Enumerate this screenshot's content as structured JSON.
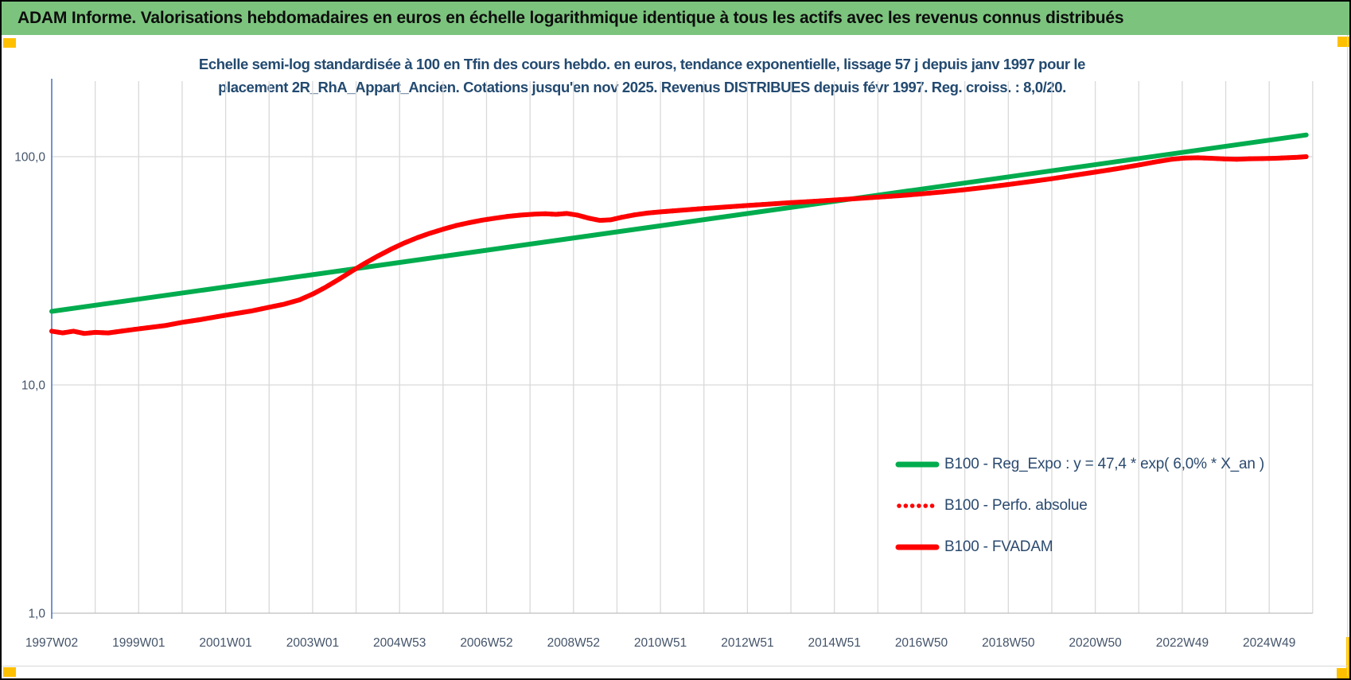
{
  "header": {
    "text": "ADAM Informe. Valorisations hebdomadaires en euros en échelle logarithmique identique à tous les actifs avec les revenus connus distribués",
    "background_color": "#7CC47E"
  },
  "handles_color": "#FFC000",
  "chart_data": {
    "type": "line",
    "title_line1": "Echelle semi-log standardisée à 100 en Tfin des cours hebdo. en euros, tendance exponentielle, lissage 57 j depuis janv 1997 pour le",
    "title_line2": "placement 2R_RhA_Appart_Ancien. Cotations jusqu'en nov 2025. Revenus DISTRIBUES depuis févr 1997. Reg. croiss. : 8,0/20.",
    "y_axis": {
      "scale": "log",
      "tick_labels": [
        "100,0",
        "10,0",
        "1,0"
      ],
      "tick_values": [
        100,
        10,
        1
      ],
      "grid_values": [
        100,
        10
      ]
    },
    "x_axis": {
      "tick_labels": [
        "1997W02",
        "1999W01",
        "2001W01",
        "2003W01",
        "2004W53",
        "2006W52",
        "2008W52",
        "2010W51",
        "2012W51",
        "2014W51",
        "2016W50",
        "2018W50",
        "2020W50",
        "2022W49",
        "2024W49"
      ],
      "years_per_label": 2,
      "minor_grid_step_years": 1,
      "total_extent_years": 29
    },
    "colors": {
      "grid": "#D9D9D9",
      "baseline": "#BFBFBF",
      "y_axis_line": "#4472C4",
      "tick_text": "#44546A",
      "green_series": "#00AC4E",
      "red_series": "#FF0000"
    },
    "series": [
      {
        "name": "B100 - Reg_Expo : y = 47,4 * exp( 6,0% *  X_an )",
        "color": "#00AC4E",
        "style": "solid",
        "points": [
          [
            0,
            21.0
          ],
          [
            28.85,
            124.5
          ]
        ]
      },
      {
        "name": "B100 - Perfo. absolue",
        "color": "#FF0000",
        "style": "dotted",
        "points_ref": "B100 - FVADAM",
        "note_visible": "coincides with B100 - FVADAM curve"
      },
      {
        "name": "B100 - FVADAM",
        "color": "#FF0000",
        "style": "solid",
        "points": [
          [
            0,
            17.2
          ],
          [
            0.25,
            16.9
          ],
          [
            0.5,
            17.2
          ],
          [
            0.75,
            16.8
          ],
          [
            1.0,
            17.0
          ],
          [
            1.3,
            16.9
          ],
          [
            1.6,
            17.2
          ],
          [
            1.9,
            17.5
          ],
          [
            2.2,
            17.8
          ],
          [
            2.6,
            18.2
          ],
          [
            3.0,
            18.8
          ],
          [
            3.4,
            19.3
          ],
          [
            3.8,
            19.9
          ],
          [
            4.2,
            20.5
          ],
          [
            4.6,
            21.1
          ],
          [
            5.0,
            21.9
          ],
          [
            5.35,
            22.6
          ],
          [
            5.7,
            23.6
          ],
          [
            6.0,
            25.0
          ],
          [
            6.3,
            26.8
          ],
          [
            6.6,
            29.0
          ],
          [
            6.9,
            31.5
          ],
          [
            7.2,
            34.1
          ],
          [
            7.5,
            36.7
          ],
          [
            7.8,
            39.3
          ],
          [
            8.1,
            41.8
          ],
          [
            8.4,
            44.1
          ],
          [
            8.7,
            46.2
          ],
          [
            9.0,
            48.1
          ],
          [
            9.3,
            49.9
          ],
          [
            9.6,
            51.4
          ],
          [
            9.9,
            52.7
          ],
          [
            10.2,
            53.8
          ],
          [
            10.5,
            54.8
          ],
          [
            10.8,
            55.5
          ],
          [
            11.1,
            56.0
          ],
          [
            11.35,
            56.2
          ],
          [
            11.6,
            55.9
          ],
          [
            11.85,
            56.4
          ],
          [
            12.1,
            55.4
          ],
          [
            12.35,
            53.8
          ],
          [
            12.6,
            52.6
          ],
          [
            12.85,
            52.9
          ],
          [
            13.1,
            54.2
          ],
          [
            13.4,
            55.6
          ],
          [
            13.7,
            56.6
          ],
          [
            14.0,
            57.3
          ],
          [
            14.5,
            58.3
          ],
          [
            15.0,
            59.3
          ],
          [
            15.5,
            60.2
          ],
          [
            16.0,
            61.1
          ],
          [
            16.5,
            62.0
          ],
          [
            17.0,
            62.9
          ],
          [
            17.5,
            63.7
          ],
          [
            18.0,
            64.6
          ],
          [
            18.5,
            65.5
          ],
          [
            19.0,
            66.5
          ],
          [
            19.5,
            67.5
          ],
          [
            20.0,
            68.7
          ],
          [
            20.5,
            70.1
          ],
          [
            21.0,
            71.7
          ],
          [
            21.5,
            73.5
          ],
          [
            22.0,
            75.5
          ],
          [
            22.5,
            77.7
          ],
          [
            23.0,
            80.1
          ],
          [
            23.5,
            82.8
          ],
          [
            24.0,
            85.6
          ],
          [
            24.5,
            88.6
          ],
          [
            25.0,
            92.0
          ],
          [
            25.4,
            95.0
          ],
          [
            25.75,
            97.4
          ],
          [
            26.05,
            98.6
          ],
          [
            26.35,
            98.9
          ],
          [
            26.65,
            98.4
          ],
          [
            26.95,
            97.8
          ],
          [
            27.25,
            97.5
          ],
          [
            27.55,
            97.9
          ],
          [
            27.85,
            98.1
          ],
          [
            28.15,
            98.4
          ],
          [
            28.45,
            99.0
          ],
          [
            28.65,
            99.4
          ],
          [
            28.85,
            100.0
          ]
        ]
      }
    ],
    "legend": {
      "position": "right-center",
      "entries": [
        {
          "label": "B100 - Reg_Expo : y = 47,4 * exp( 6,0% *  X_an )",
          "color": "#00AC4E",
          "style": "solid"
        },
        {
          "label": "B100 - Perfo. absolue",
          "color": "#FF0000",
          "style": "dotted"
        },
        {
          "label": "B100 - FVADAM",
          "color": "#FF0000",
          "style": "solid"
        }
      ]
    }
  }
}
